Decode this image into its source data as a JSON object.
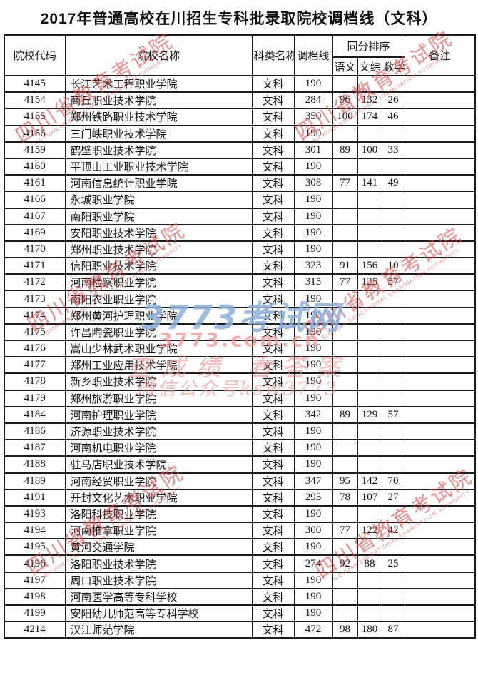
{
  "title": "2017年普通高校在川招生专科批录取院校调档线（文科）",
  "table": {
    "headers": {
      "code": "院校代码",
      "name": "院校名称",
      "category": "科类名称",
      "line": "调档线",
      "tie_break": "同分排序",
      "chinese": "语文",
      "comprehensive": "文综",
      "math": "数学",
      "remark": "备注"
    },
    "rows": [
      {
        "code": "4145",
        "name": "长江艺术工程职业学院",
        "category": "文科",
        "line": "190",
        "chinese": "",
        "comprehensive": "",
        "math": "",
        "remark": ""
      },
      {
        "code": "4154",
        "name": "商丘职业技术学院",
        "category": "文科",
        "line": "284",
        "chinese": "96",
        "comprehensive": "132",
        "math": "26",
        "remark": ""
      },
      {
        "code": "4155",
        "name": "郑州铁路职业技术学院",
        "category": "文科",
        "line": "350",
        "chinese": "100",
        "comprehensive": "174",
        "math": "46",
        "remark": ""
      },
      {
        "code": "4156",
        "name": "三门峡职业技术学院",
        "category": "文科",
        "line": "190",
        "chinese": "",
        "comprehensive": "",
        "math": "",
        "remark": ""
      },
      {
        "code": "4159",
        "name": "鹤壁职业技术学院",
        "category": "文科",
        "line": "301",
        "chinese": "89",
        "comprehensive": "100",
        "math": "33",
        "remark": ""
      },
      {
        "code": "4160",
        "name": "平顶山工业职业技术学院",
        "category": "文科",
        "line": "190",
        "chinese": "",
        "comprehensive": "",
        "math": "",
        "remark": ""
      },
      {
        "code": "4161",
        "name": "河南信息统计职业学院",
        "category": "文科",
        "line": "308",
        "chinese": "77",
        "comprehensive": "141",
        "math": "49",
        "remark": ""
      },
      {
        "code": "4166",
        "name": "永城职业学院",
        "category": "文科",
        "line": "190",
        "chinese": "",
        "comprehensive": "",
        "math": "",
        "remark": ""
      },
      {
        "code": "4167",
        "name": "南阳职业学院",
        "category": "文科",
        "line": "190",
        "chinese": "",
        "comprehensive": "",
        "math": "",
        "remark": ""
      },
      {
        "code": "4169",
        "name": "安阳职业技术学院",
        "category": "文科",
        "line": "190",
        "chinese": "",
        "comprehensive": "",
        "math": "",
        "remark": ""
      },
      {
        "code": "4170",
        "name": "郑州职业技术学院",
        "category": "文科",
        "line": "190",
        "chinese": "",
        "comprehensive": "",
        "math": "",
        "remark": ""
      },
      {
        "code": "4171",
        "name": "信阳职业技术学院",
        "category": "文科",
        "line": "323",
        "chinese": "91",
        "comprehensive": "156",
        "math": "10",
        "remark": ""
      },
      {
        "code": "4172",
        "name": "河南检察职业学院",
        "category": "文科",
        "line": "315",
        "chinese": "77",
        "comprehensive": "125",
        "math": "57",
        "remark": ""
      },
      {
        "code": "4173",
        "name": "南阳农业职业学院",
        "category": "文科",
        "line": "190",
        "chinese": "",
        "comprehensive": "",
        "math": "",
        "remark": ""
      },
      {
        "code": "4174",
        "name": "郑州黄河护理职业学院",
        "category": "文科",
        "line": "190",
        "chinese": "",
        "comprehensive": "",
        "math": "",
        "remark": ""
      },
      {
        "code": "4175",
        "name": "许昌陶瓷职业学院",
        "category": "文科",
        "line": "190",
        "chinese": "",
        "comprehensive": "",
        "math": "",
        "remark": ""
      },
      {
        "code": "4176",
        "name": "嵩山少林武术职业学院",
        "category": "文科",
        "line": "190",
        "chinese": "",
        "comprehensive": "",
        "math": "",
        "remark": ""
      },
      {
        "code": "4177",
        "name": "郑州工业应用技术学院",
        "category": "文科",
        "line": "190",
        "chinese": "",
        "comprehensive": "",
        "math": "",
        "remark": ""
      },
      {
        "code": "4178",
        "name": "新乡职业技术学院",
        "category": "文科",
        "line": "190",
        "chinese": "",
        "comprehensive": "",
        "math": "",
        "remark": ""
      },
      {
        "code": "4179",
        "name": "郑州旅游职业学院",
        "category": "文科",
        "line": "190",
        "chinese": "",
        "comprehensive": "",
        "math": "",
        "remark": ""
      },
      {
        "code": "4184",
        "name": "河南护理职业学院",
        "category": "文科",
        "line": "342",
        "chinese": "89",
        "comprehensive": "129",
        "math": "57",
        "remark": ""
      },
      {
        "code": "4186",
        "name": "济源职业技术学院",
        "category": "文科",
        "line": "190",
        "chinese": "",
        "comprehensive": "",
        "math": "",
        "remark": ""
      },
      {
        "code": "4187",
        "name": "河南机电职业学院",
        "category": "文科",
        "line": "190",
        "chinese": "",
        "comprehensive": "",
        "math": "",
        "remark": ""
      },
      {
        "code": "4188",
        "name": "驻马店职业技术学院",
        "category": "文科",
        "line": "190",
        "chinese": "",
        "comprehensive": "",
        "math": "",
        "remark": ""
      },
      {
        "code": "4189",
        "name": "河南经贸职业学院",
        "category": "文科",
        "line": "347",
        "chinese": "95",
        "comprehensive": "142",
        "math": "70",
        "remark": ""
      },
      {
        "code": "4191",
        "name": "开封文化艺术职业学院",
        "category": "文科",
        "line": "295",
        "chinese": "78",
        "comprehensive": "107",
        "math": "27",
        "remark": ""
      },
      {
        "code": "4193",
        "name": "洛阳科技职业学院",
        "category": "文科",
        "line": "190",
        "chinese": "",
        "comprehensive": "",
        "math": "",
        "remark": ""
      },
      {
        "code": "4194",
        "name": "河南推拿职业学院",
        "category": "文科",
        "line": "300",
        "chinese": "77",
        "comprehensive": "122",
        "math": "42",
        "remark": ""
      },
      {
        "code": "4195",
        "name": "黄河交通学院",
        "category": "文科",
        "line": "190",
        "chinese": "",
        "comprehensive": "",
        "math": "",
        "remark": ""
      },
      {
        "code": "4196",
        "name": "洛阳职业技术学院",
        "category": "文科",
        "line": "274",
        "chinese": "92",
        "comprehensive": "88",
        "math": "25",
        "remark": ""
      },
      {
        "code": "4197",
        "name": "周口职业技术学院",
        "category": "文科",
        "line": "190",
        "chinese": "",
        "comprehensive": "",
        "math": "",
        "remark": ""
      },
      {
        "code": "4198",
        "name": "河南医学高等专科学校",
        "category": "文科",
        "line": "190",
        "chinese": "",
        "comprehensive": "",
        "math": "",
        "remark": ""
      },
      {
        "code": "4199",
        "name": "安阳幼儿师范高等专科学校",
        "category": "文科",
        "line": "190",
        "chinese": "",
        "comprehensive": "",
        "math": "",
        "remark": ""
      },
      {
        "code": "4214",
        "name": "汉江师范学院",
        "category": "文科",
        "line": "472",
        "chinese": "98",
        "comprehensive": "180",
        "math": "87",
        "remark": ""
      }
    ]
  },
  "watermarks": {
    "stamp_line1": "四川省教育考试院",
    "stamp_line2": "SICHUAN EDUCATIONAL EXAMINATION AUTHORITY",
    "site_name": "3773考试网",
    "site_url": "3773.com.cn",
    "slogan": "查成绩 看答案",
    "wechat": "微信公众号ksw3773"
  },
  "colors": {
    "stamp_red": "#dd4848",
    "watermark_blue": "#8cafdc",
    "watermark_pink": "#ee8c8c"
  }
}
